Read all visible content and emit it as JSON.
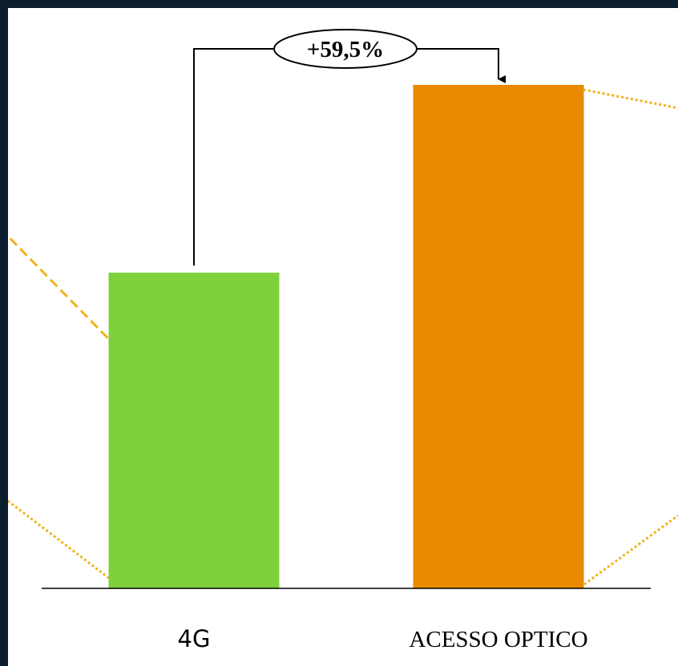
{
  "chart_data": {
    "type": "bar",
    "categories": [
      "4G",
      "ACESSO OPTICO"
    ],
    "values": [
      62.7,
      100
    ],
    "ylim": [
      0,
      100
    ],
    "grid": false,
    "legend": "none",
    "title": "",
    "xlabel": "",
    "ylabel": "",
    "annotation": {
      "text": "+59,5%",
      "from": "4G",
      "to": "ACESSO OPTICO"
    }
  },
  "colors": {
    "background": "#0b1c2e",
    "panel": "#ffffff",
    "bars": [
      "#7fd13b",
      "#ea8a00"
    ],
    "decor_lines": "#f2b21c",
    "axis": "#000000"
  }
}
